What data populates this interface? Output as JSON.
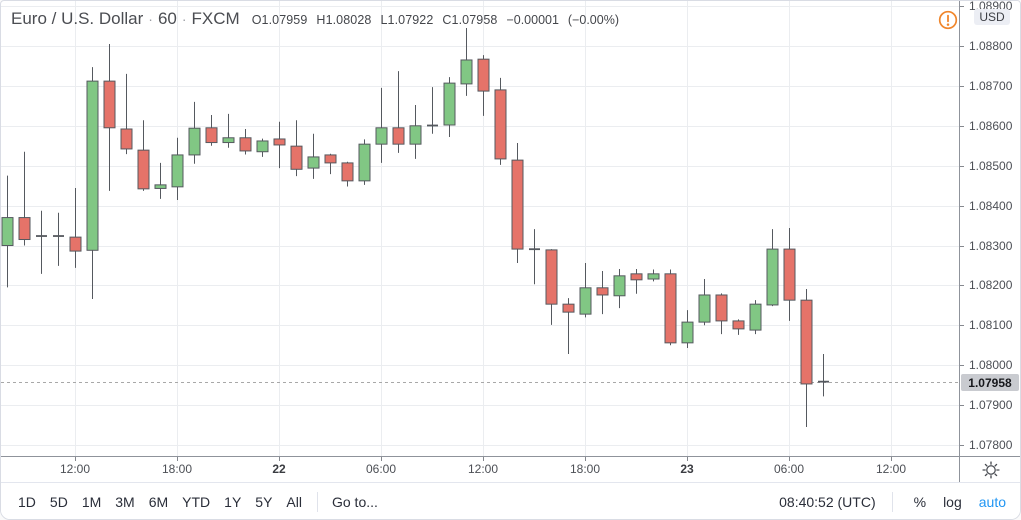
{
  "header": {
    "symbol": "Euro / U.S. Dollar",
    "separator": "·",
    "interval": "60",
    "exchange": "FXCM",
    "ohlc": {
      "o_label": "O",
      "o": "1.07959",
      "h_label": "H",
      "h": "1.08028",
      "l_label": "L",
      "l": "1.07922",
      "c_label": "C",
      "c": "1.07958",
      "change": "−0.00001",
      "change_pct": "(−0.00%)"
    },
    "alert_icon": "exclamation-circle-icon"
  },
  "price_axis": {
    "currency_badge": "USD",
    "ticks": [
      "1.08900",
      "1.08800",
      "1.08700",
      "1.08600",
      "1.08500",
      "1.08400",
      "1.08300",
      "1.08200",
      "1.08100",
      "1.08000",
      "1.07900",
      "1.07800"
    ],
    "last_price_label": "1.07958"
  },
  "time_axis": {
    "ticks": [
      {
        "label": "12:00",
        "candle": 4,
        "bold": false
      },
      {
        "label": "18:00",
        "candle": 10,
        "bold": false
      },
      {
        "label": "22",
        "candle": 16,
        "bold": true
      },
      {
        "label": "06:00",
        "candle": 22,
        "bold": false
      },
      {
        "label": "12:00",
        "candle": 28,
        "bold": false
      },
      {
        "label": "18:00",
        "candle": 34,
        "bold": false
      },
      {
        "label": "23",
        "candle": 40,
        "bold": true
      },
      {
        "label": "06:00",
        "candle": 46,
        "bold": false
      },
      {
        "label": "12:00",
        "candle": 52,
        "bold": false
      }
    ]
  },
  "toolbar": {
    "ranges": [
      "1D",
      "5D",
      "1M",
      "3M",
      "6M",
      "YTD",
      "1Y",
      "5Y",
      "All"
    ],
    "goto": "Go to...",
    "clock": "08:40:52 (UTC)",
    "percent": "%",
    "log": "log",
    "auto": "auto"
  },
  "colors": {
    "up": "#81c784",
    "down": "#e57369",
    "border": "#55595f",
    "wick": "#55595f",
    "grid": "#ebedf0",
    "last_line": "#a8a8a8",
    "axis_tick": "#85888e",
    "accent_orange": "#f0862c",
    "link_blue": "#2196f3",
    "text_dark": "#2a2e39"
  },
  "chart_data": {
    "type": "candlestick",
    "symbol": "Euro / U.S. Dollar",
    "interval_minutes": 60,
    "feed": "FXCM",
    "last_price": 1.07958,
    "ylim": [
      1.0779,
      1.0891
    ],
    "grid": "on",
    "candles": [
      {
        "t": "21 08:00",
        "o": 1.083,
        "h": 1.08475,
        "l": 1.08195,
        "c": 1.0837
      },
      {
        "t": "21 09:00",
        "o": 1.0837,
        "h": 1.08535,
        "l": 1.083,
        "c": 1.08315
      },
      {
        "t": "21 10:00",
        "o": 1.08322,
        "h": 1.08387,
        "l": 1.08229,
        "c": 1.08324
      },
      {
        "t": "21 11:00",
        "o": 1.08324,
        "h": 1.08382,
        "l": 1.08249,
        "c": 1.08322
      },
      {
        "t": "21 12:00",
        "o": 1.08321,
        "h": 1.08444,
        "l": 1.08244,
        "c": 1.08286
      },
      {
        "t": "21 13:00",
        "o": 1.08288,
        "h": 1.08747,
        "l": 1.08166,
        "c": 1.08712
      },
      {
        "t": "21 14:00",
        "o": 1.08712,
        "h": 1.08805,
        "l": 1.08437,
        "c": 1.08595
      },
      {
        "t": "21 15:00",
        "o": 1.08592,
        "h": 1.0873,
        "l": 1.08529,
        "c": 1.08542
      },
      {
        "t": "21 16:00",
        "o": 1.08539,
        "h": 1.08614,
        "l": 1.08437,
        "c": 1.08442
      },
      {
        "t": "21 17:00",
        "o": 1.08443,
        "h": 1.08507,
        "l": 1.08417,
        "c": 1.08452
      },
      {
        "t": "21 18:00",
        "o": 1.08447,
        "h": 1.0857,
        "l": 1.08414,
        "c": 1.08527
      },
      {
        "t": "21 19:00",
        "o": 1.08527,
        "h": 1.0866,
        "l": 1.08505,
        "c": 1.08594
      },
      {
        "t": "21 20:00",
        "o": 1.08595,
        "h": 1.08627,
        "l": 1.0855,
        "c": 1.08558
      },
      {
        "t": "21 21:00",
        "o": 1.08558,
        "h": 1.0863,
        "l": 1.08545,
        "c": 1.0857
      },
      {
        "t": "21 22:00",
        "o": 1.0857,
        "h": 1.08592,
        "l": 1.08528,
        "c": 1.08537
      },
      {
        "t": "21 23:00",
        "o": 1.08535,
        "h": 1.08568,
        "l": 1.08522,
        "c": 1.08562
      },
      {
        "t": "22 00:00",
        "o": 1.08567,
        "h": 1.0861,
        "l": 1.08494,
        "c": 1.08552
      },
      {
        "t": "22 01:00",
        "o": 1.08549,
        "h": 1.08614,
        "l": 1.08474,
        "c": 1.08491
      },
      {
        "t": "22 02:00",
        "o": 1.08494,
        "h": 1.0858,
        "l": 1.08467,
        "c": 1.08522
      },
      {
        "t": "22 03:00",
        "o": 1.08527,
        "h": 1.0853,
        "l": 1.08479,
        "c": 1.08507
      },
      {
        "t": "22 04:00",
        "o": 1.08507,
        "h": 1.0851,
        "l": 1.08448,
        "c": 1.08462
      },
      {
        "t": "22 05:00",
        "o": 1.08462,
        "h": 1.08566,
        "l": 1.08452,
        "c": 1.08554
      },
      {
        "t": "22 06:00",
        "o": 1.08554,
        "h": 1.08695,
        "l": 1.08507,
        "c": 1.08595
      },
      {
        "t": "22 07:00",
        "o": 1.08595,
        "h": 1.08737,
        "l": 1.08532,
        "c": 1.08554
      },
      {
        "t": "22 08:00",
        "o": 1.08554,
        "h": 1.08652,
        "l": 1.08517,
        "c": 1.086
      },
      {
        "t": "22 09:00",
        "o": 1.086,
        "h": 1.08697,
        "l": 1.0858,
        "c": 1.08601
      },
      {
        "t": "22 10:00",
        "o": 1.08602,
        "h": 1.08722,
        "l": 1.08572,
        "c": 1.08707
      },
      {
        "t": "22 11:00",
        "o": 1.08705,
        "h": 1.08845,
        "l": 1.08675,
        "c": 1.08765
      },
      {
        "t": "22 12:00",
        "o": 1.08767,
        "h": 1.08777,
        "l": 1.08625,
        "c": 1.08687
      },
      {
        "t": "22 13:00",
        "o": 1.0869,
        "h": 1.0872,
        "l": 1.08502,
        "c": 1.08517
      },
      {
        "t": "22 14:00",
        "o": 1.08514,
        "h": 1.08557,
        "l": 1.08256,
        "c": 1.08291
      },
      {
        "t": "22 15:00",
        "o": 1.08291,
        "h": 1.08341,
        "l": 1.08203,
        "c": 1.0829
      },
      {
        "t": "22 16:00",
        "o": 1.08289,
        "h": 1.08291,
        "l": 1.08101,
        "c": 1.08153
      },
      {
        "t": "22 17:00",
        "o": 1.08153,
        "h": 1.08168,
        "l": 1.08028,
        "c": 1.08133
      },
      {
        "t": "22 18:00",
        "o": 1.08128,
        "h": 1.08256,
        "l": 1.0812,
        "c": 1.08194
      },
      {
        "t": "22 19:00",
        "o": 1.08194,
        "h": 1.08236,
        "l": 1.08128,
        "c": 1.08176
      },
      {
        "t": "22 20:00",
        "o": 1.08174,
        "h": 1.08241,
        "l": 1.08143,
        "c": 1.08224
      },
      {
        "t": "22 21:00",
        "o": 1.08229,
        "h": 1.08241,
        "l": 1.08179,
        "c": 1.08214
      },
      {
        "t": "22 22:00",
        "o": 1.08216,
        "h": 1.0824,
        "l": 1.0821,
        "c": 1.08229
      },
      {
        "t": "22 23:00",
        "o": 1.08229,
        "h": 1.0824,
        "l": 1.0805,
        "c": 1.08056
      },
      {
        "t": "23 00:00",
        "o": 1.08056,
        "h": 1.08138,
        "l": 1.08043,
        "c": 1.08108
      },
      {
        "t": "23 01:00",
        "o": 1.08108,
        "h": 1.08216,
        "l": 1.081,
        "c": 1.08176
      },
      {
        "t": "23 02:00",
        "o": 1.08176,
        "h": 1.0818,
        "l": 1.08078,
        "c": 1.08111
      },
      {
        "t": "23 03:00",
        "o": 1.08111,
        "h": 1.08115,
        "l": 1.08076,
        "c": 1.08091
      },
      {
        "t": "23 04:00",
        "o": 1.08088,
        "h": 1.08163,
        "l": 1.08078,
        "c": 1.08153
      },
      {
        "t": "23 05:00",
        "o": 1.08151,
        "h": 1.08341,
        "l": 1.08148,
        "c": 1.08291
      },
      {
        "t": "23 06:00",
        "o": 1.08291,
        "h": 1.08344,
        "l": 1.08111,
        "c": 1.08163
      },
      {
        "t": "23 07:00",
        "o": 1.08163,
        "h": 1.08191,
        "l": 1.07845,
        "c": 1.07953
      },
      {
        "t": "23 08:00",
        "o": 1.07959,
        "h": 1.08028,
        "l": 1.07922,
        "c": 1.07958
      }
    ]
  }
}
